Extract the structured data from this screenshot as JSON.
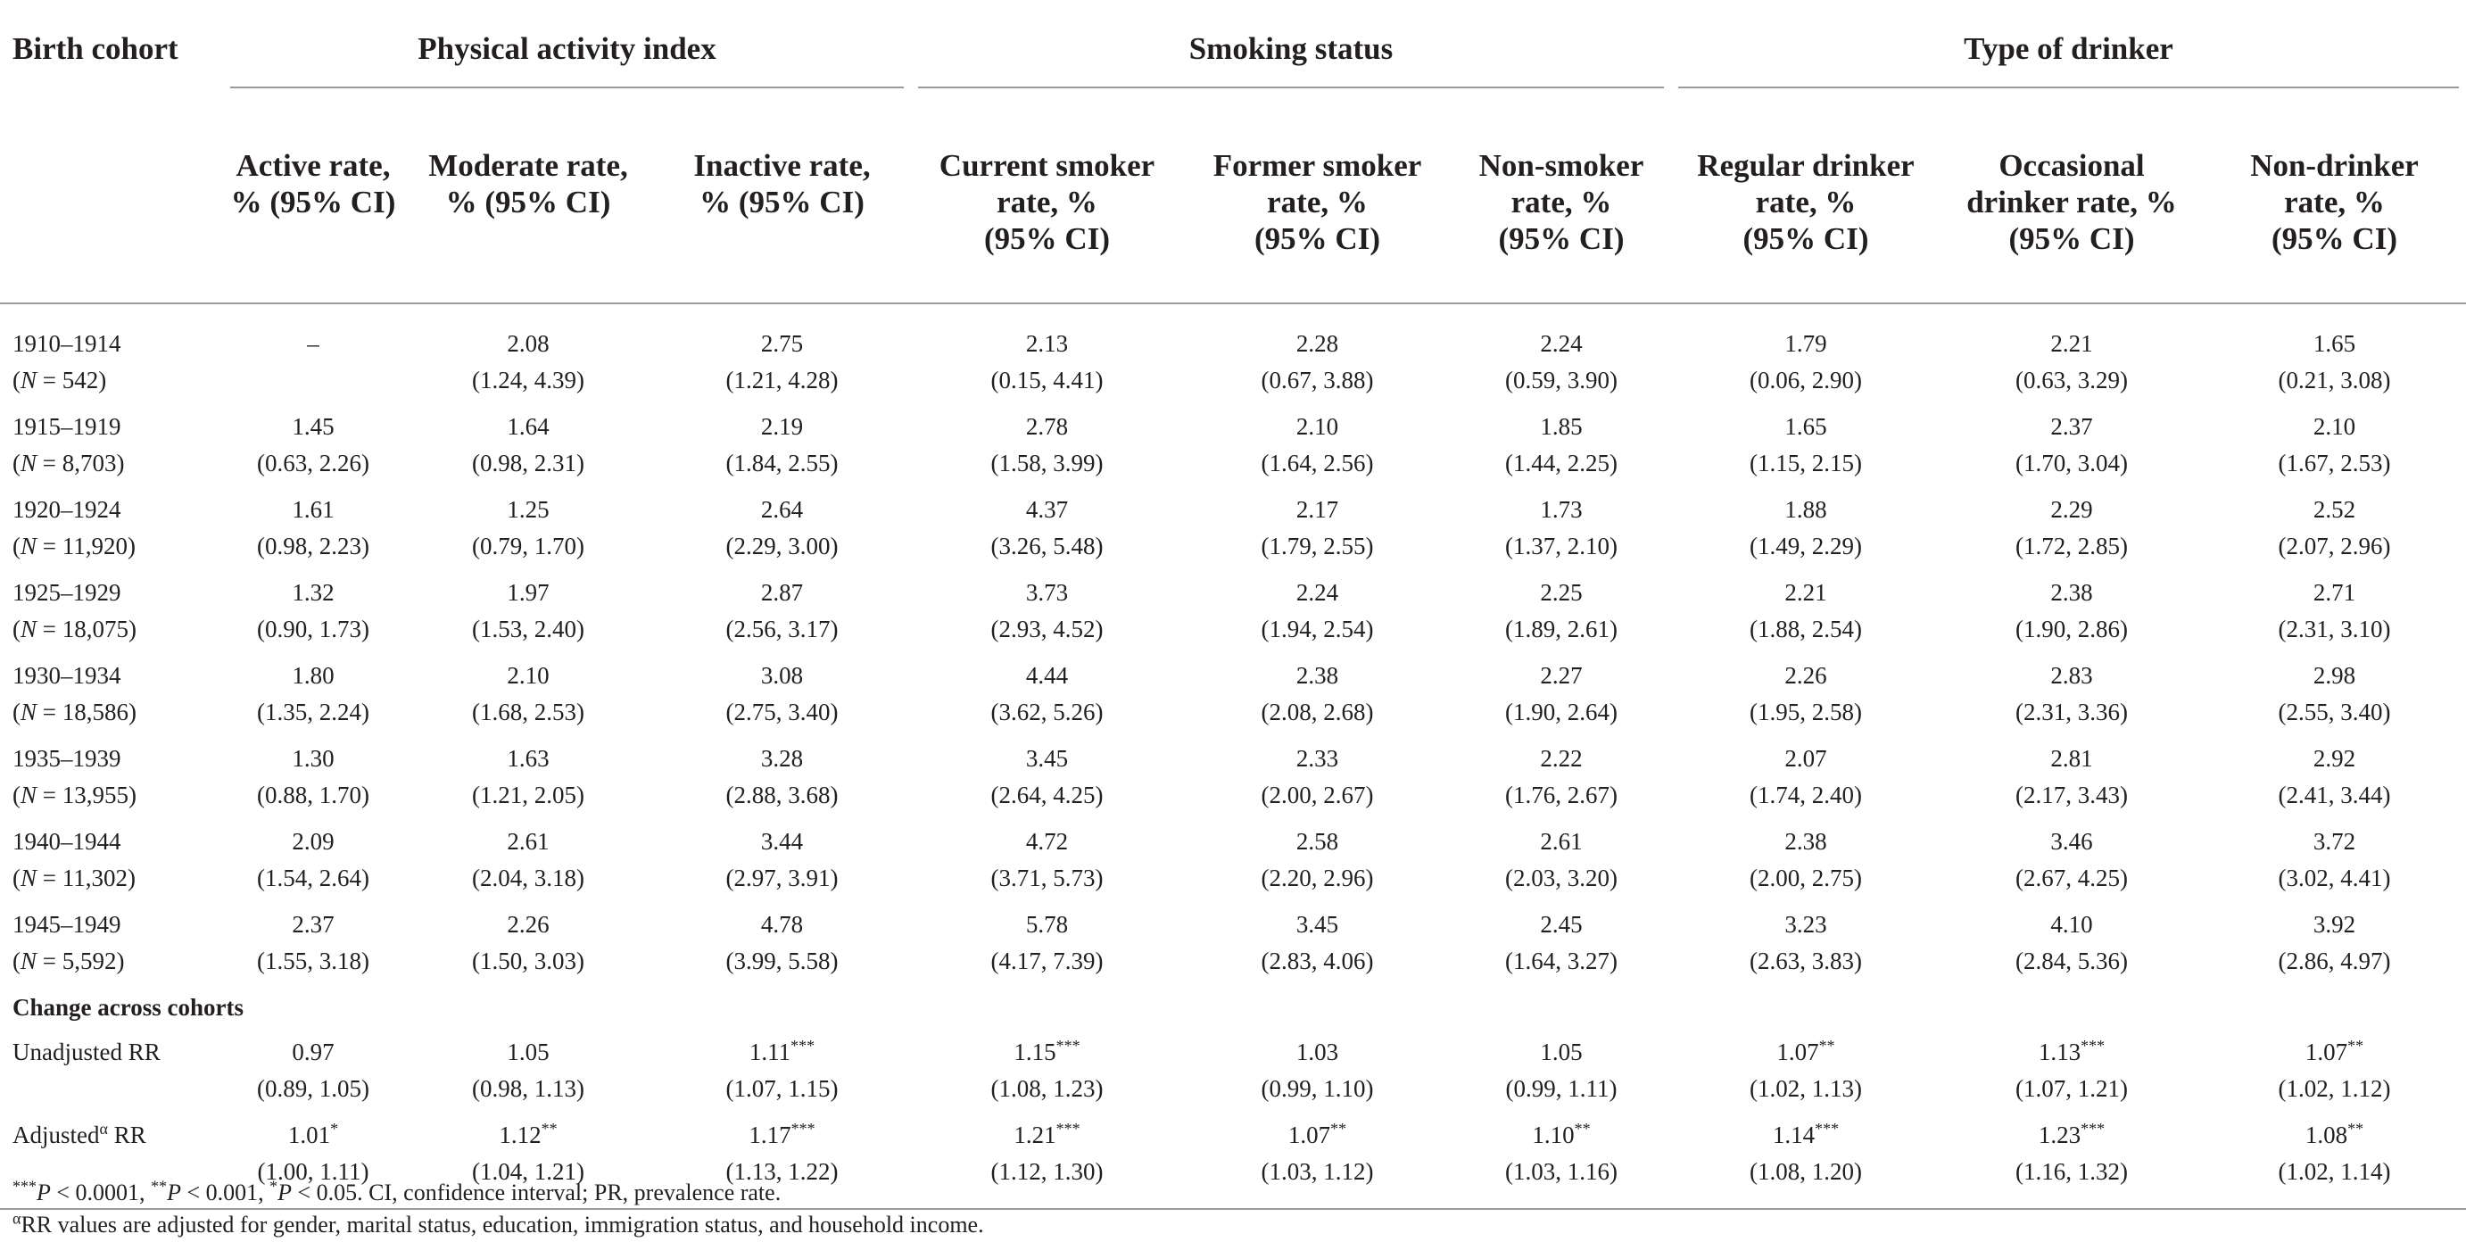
{
  "header": {
    "birth_cohort": "Birth cohort",
    "groups": [
      "Physical activity index",
      "Smoking status",
      "Type of drinker"
    ],
    "columns": [
      "Active rate,\n% (95% CI)",
      "Moderate rate,\n% (95% CI)",
      "Inactive rate,\n% (95% CI)",
      "Current smoker\nrate, %\n(95% CI)",
      "Former smoker\nrate, %\n(95% CI)",
      "Non-smoker\nrate, %\n(95% CI)",
      "Regular drinker\nrate, %\n(95% CI)",
      "Occasional\ndrinker rate, %\n(95% CI)",
      "Non-drinker\nrate, %\n(95% CI)"
    ]
  },
  "rows": [
    {
      "cohort": "1910–1914",
      "n_prefix": "(",
      "n_var": "N",
      "n_value": " = 542)",
      "values": [
        "–",
        "2.08",
        "2.75",
        "2.13",
        "2.28",
        "2.24",
        "1.79",
        "2.21",
        "1.65"
      ],
      "cis": [
        "",
        "(1.24, 4.39)",
        "(1.21, 4.28)",
        "(0.15, 4.41)",
        "(0.67, 3.88)",
        "(0.59, 3.90)",
        "(0.06, 2.90)",
        "(0.63, 3.29)",
        "(0.21, 3.08)"
      ]
    },
    {
      "cohort": "1915–1919",
      "n_prefix": "(",
      "n_var": "N",
      "n_value": " = 8,703)",
      "values": [
        "1.45",
        "1.64",
        "2.19",
        "2.78",
        "2.10",
        "1.85",
        "1.65",
        "2.37",
        "2.10"
      ],
      "cis": [
        "(0.63, 2.26)",
        "(0.98, 2.31)",
        "(1.84, 2.55)",
        "(1.58, 3.99)",
        "(1.64, 2.56)",
        "(1.44, 2.25)",
        "(1.15, 2.15)",
        "(1.70, 3.04)",
        "(1.67, 2.53)"
      ]
    },
    {
      "cohort": "1920–1924",
      "n_prefix": "(",
      "n_var": "N",
      "n_value": " = 11,920)",
      "values": [
        "1.61",
        "1.25",
        "2.64",
        "4.37",
        "2.17",
        "1.73",
        "1.88",
        "2.29",
        "2.52"
      ],
      "cis": [
        "(0.98, 2.23)",
        "(0.79, 1.70)",
        "(2.29, 3.00)",
        "(3.26, 5.48)",
        "(1.79, 2.55)",
        "(1.37, 2.10)",
        "(1.49, 2.29)",
        "(1.72, 2.85)",
        "(2.07, 2.96)"
      ]
    },
    {
      "cohort": "1925–1929",
      "n_prefix": "(",
      "n_var": "N",
      "n_value": " = 18,075)",
      "values": [
        "1.32",
        "1.97",
        "2.87",
        "3.73",
        "2.24",
        "2.25",
        "2.21",
        "2.38",
        "2.71"
      ],
      "cis": [
        "(0.90, 1.73)",
        "(1.53, 2.40)",
        "(2.56, 3.17)",
        "(2.93, 4.52)",
        "(1.94, 2.54)",
        "(1.89, 2.61)",
        "(1.88, 2.54)",
        "(1.90, 2.86)",
        "(2.31, 3.10)"
      ]
    },
    {
      "cohort": "1930–1934",
      "n_prefix": "(",
      "n_var": "N",
      "n_value": " = 18,586)",
      "values": [
        "1.80",
        "2.10",
        "3.08",
        "4.44",
        "2.38",
        "2.27",
        "2.26",
        "2.83",
        "2.98"
      ],
      "cis": [
        "(1.35, 2.24)",
        "(1.68, 2.53)",
        "(2.75, 3.40)",
        "(3.62, 5.26)",
        "(2.08, 2.68)",
        "(1.90, 2.64)",
        "(1.95, 2.58)",
        "(2.31, 3.36)",
        "(2.55, 3.40)"
      ]
    },
    {
      "cohort": "1935–1939",
      "n_prefix": "(",
      "n_var": "N",
      "n_value": " = 13,955)",
      "values": [
        "1.30",
        "1.63",
        "3.28",
        "3.45",
        "2.33",
        "2.22",
        "2.07",
        "2.81",
        "2.92"
      ],
      "cis": [
        "(0.88, 1.70)",
        "(1.21, 2.05)",
        "(2.88, 3.68)",
        "(2.64, 4.25)",
        "(2.00, 2.67)",
        "(1.76, 2.67)",
        "(1.74, 2.40)",
        "(2.17, 3.43)",
        "(2.41, 3.44)"
      ]
    },
    {
      "cohort": "1940–1944",
      "n_prefix": "(",
      "n_var": "N",
      "n_value": " = 11,302)",
      "values": [
        "2.09",
        "2.61",
        "3.44",
        "4.72",
        "2.58",
        "2.61",
        "2.38",
        "3.46",
        "3.72"
      ],
      "cis": [
        "(1.54, 2.64)",
        "(2.04, 3.18)",
        "(2.97, 3.91)",
        "(3.71, 5.73)",
        "(2.20, 2.96)",
        "(2.03, 3.20)",
        "(2.00, 2.75)",
        "(2.67, 4.25)",
        "(3.02, 4.41)"
      ]
    },
    {
      "cohort": "1945–1949",
      "n_prefix": "(",
      "n_var": "N",
      "n_value": " = 5,592)",
      "values": [
        "2.37",
        "2.26",
        "4.78",
        "5.78",
        "3.45",
        "2.45",
        "3.23",
        "4.10",
        "3.92"
      ],
      "cis": [
        "(1.55, 3.18)",
        "(1.50, 3.03)",
        "(3.99, 5.58)",
        "(4.17, 7.39)",
        "(2.83, 4.06)",
        "(1.64, 3.27)",
        "(2.63, 3.83)",
        "(2.84, 5.36)",
        "(2.86, 4.97)"
      ]
    }
  ],
  "change_section": {
    "title": "Change across cohorts",
    "rows": [
      {
        "label": "Unadjusted RR",
        "label_sup": "",
        "values": [
          "0.97",
          "1.05",
          "1.11",
          "1.15",
          "1.03",
          "1.05",
          "1.07",
          "1.13",
          "1.07"
        ],
        "sig": [
          "",
          "",
          "***",
          "***",
          "",
          "",
          "**",
          "***",
          "**"
        ],
        "cis": [
          "(0.89, 1.05)",
          "(0.98, 1.13)",
          "(1.07, 1.15)",
          "(1.08, 1.23)",
          "(0.99, 1.10)",
          "(0.99, 1.11)",
          "(1.02, 1.13)",
          "(1.07, 1.21)",
          "(1.02, 1.12)"
        ]
      },
      {
        "label": "Adjusted",
        "label_sup": "α",
        "label_suffix": " RR",
        "values": [
          "1.01",
          "1.12",
          "1.17",
          "1.21",
          "1.07",
          "1.10",
          "1.14",
          "1.23",
          "1.08"
        ],
        "sig": [
          "*",
          "**",
          "***",
          "***",
          "**",
          "**",
          "***",
          "***",
          "**"
        ],
        "cis": [
          "(1.00, 1.11)",
          "(1.04, 1.21)",
          "(1.13, 1.22)",
          "(1.12, 1.30)",
          "(1.03, 1.12)",
          "(1.03, 1.16)",
          "(1.08, 1.20)",
          "(1.16, 1.32)",
          "(1.02, 1.14)"
        ]
      }
    ]
  },
  "footnotes": {
    "sig": {
      "s3": "***",
      "p1_var": "P",
      "p1": " < 0.0001, ",
      "s2": "**",
      "p2_var": "P",
      "p2": " < 0.001, ",
      "s1": "*",
      "p3_var": "P",
      "p3": " < 0.05. CI, confidence interval; PR, prevalence rate."
    },
    "adj": {
      "sup": "α",
      "text": "RR values are adjusted for gender, marital status, education, immigration status, and household income."
    }
  }
}
